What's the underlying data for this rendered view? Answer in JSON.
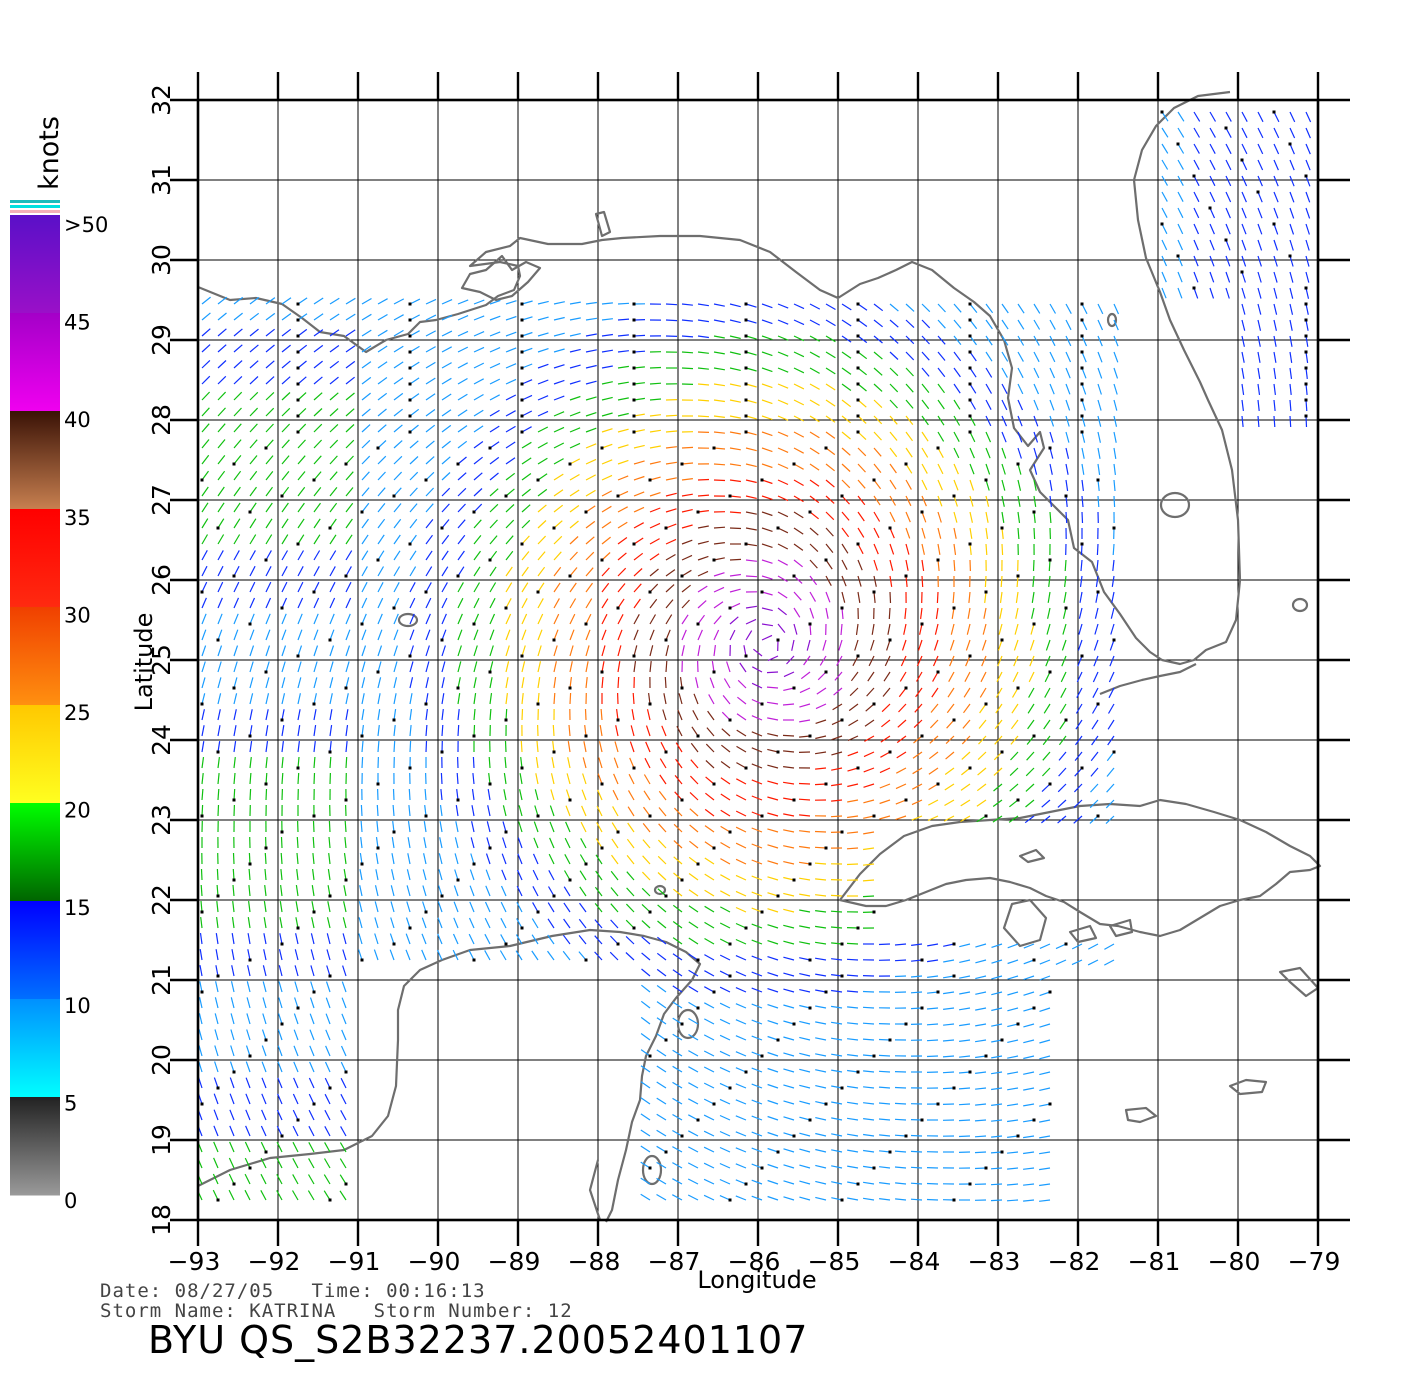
{
  "colorbar": {
    "unit_label": "knots",
    "tick_labels": [
      ">50",
      "45",
      "40",
      "35",
      "30",
      "25",
      "20",
      "15",
      "10",
      "5",
      "0"
    ],
    "segments": [
      {
        "range": "45-50",
        "colors": [
          "#5a10c8",
          "#9a10c8"
        ]
      },
      {
        "range": "40-45",
        "colors": [
          "#a400c8",
          "#f000f0"
        ]
      },
      {
        "range": "35-40",
        "colors": [
          "#3a1206",
          "#c88050"
        ]
      },
      {
        "range": "30-35",
        "colors": [
          "#ff0000",
          "#ff2a10"
        ]
      },
      {
        "range": "25-30",
        "colors": [
          "#f04000",
          "#ff9010"
        ]
      },
      {
        "range": "20-25",
        "colors": [
          "#ffc800",
          "#ffff20"
        ]
      },
      {
        "range": "15-20",
        "colors": [
          "#00ff00",
          "#006400"
        ]
      },
      {
        "range": "10-15",
        "colors": [
          "#0000ff",
          "#0070ff"
        ]
      },
      {
        "range": "5-10",
        "colors": [
          "#0090ff",
          "#00ffff"
        ]
      },
      {
        "range": "0-5",
        "colors": [
          "#222222",
          "#9a9a9a"
        ]
      }
    ]
  },
  "map": {
    "xlabel": "Longitude",
    "ylabel": "Latitude",
    "lon_range": [
      -93,
      -79
    ],
    "lat_range": [
      18,
      32
    ],
    "lon_ticks": [
      "−93",
      "−92",
      "−91",
      "−90",
      "−89",
      "−88",
      "−87",
      "−86",
      "−85",
      "−84",
      "−83",
      "−82",
      "−81",
      "−80",
      "−79"
    ],
    "lat_ticks": [
      "18",
      "19",
      "20",
      "21",
      "22",
      "23",
      "24",
      "25",
      "26",
      "27",
      "28",
      "29",
      "30",
      "31",
      "32"
    ],
    "gridlines": true,
    "wind_field": {
      "storm_center": [
        -85.9,
        25.2
      ],
      "swaths": [
        "western Gulf (lon −93 to −91, lat 19–29.5)",
        "central Gulf",
        "Caribbean south of Cuba",
        "Atlantic east of Florida"
      ]
    }
  },
  "footer": {
    "line1": "Date: 08/27/05   Time: 00:16:13",
    "line2": "Storm Name: KATRINA   Storm Number: 12",
    "product": "BYU QS_S2B32237.20052401107"
  }
}
